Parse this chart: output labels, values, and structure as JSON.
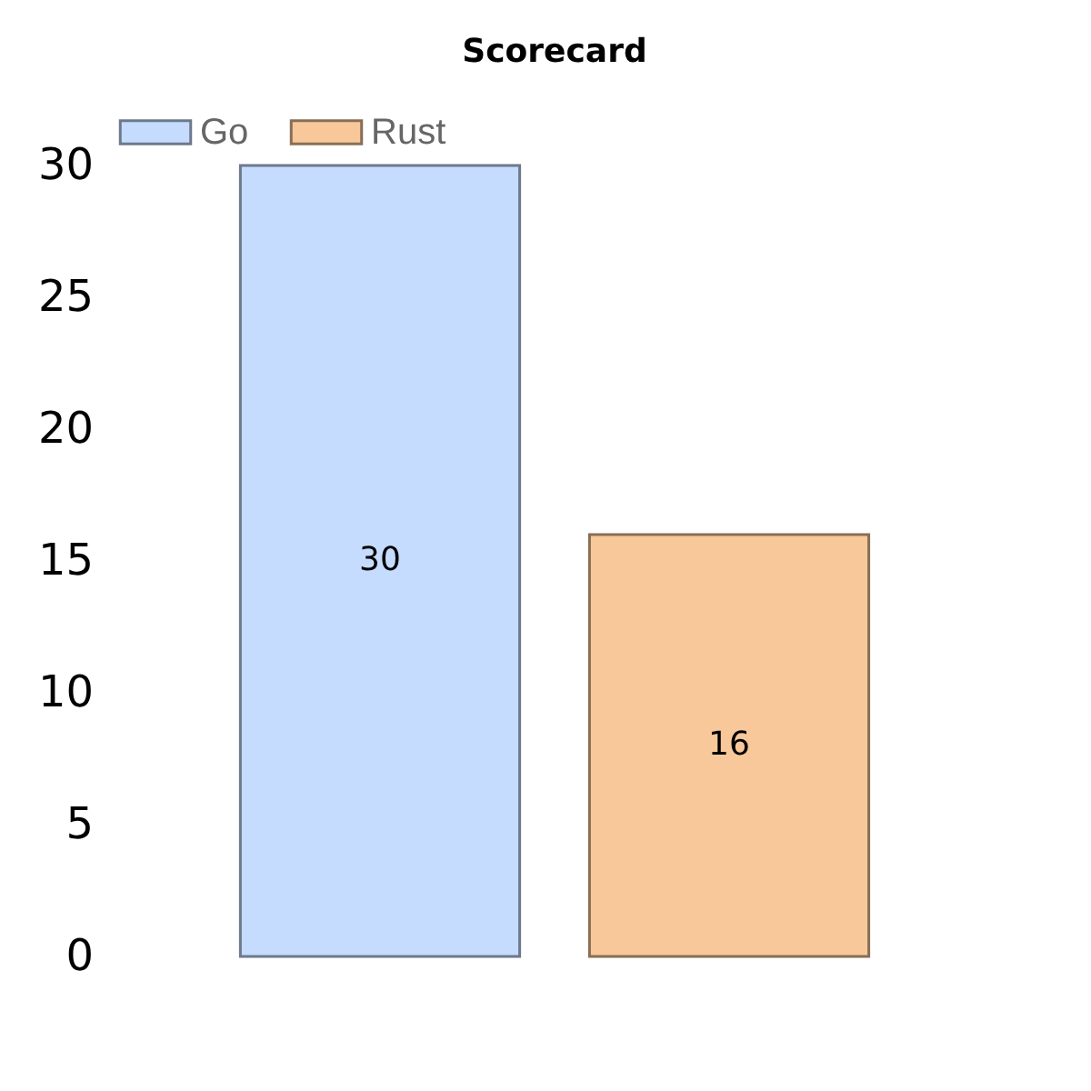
{
  "chart_data": {
    "type": "bar",
    "title": "Scorecard",
    "categories": [
      null
    ],
    "series": [
      {
        "name": "Go",
        "color": "#c6dcfe",
        "values": [
          30
        ]
      },
      {
        "name": "Rust",
        "color": "#f8c89a",
        "values": [
          16
        ]
      }
    ],
    "ylim": [
      0,
      30
    ],
    "yticks": [
      0,
      5,
      10,
      15,
      20,
      25,
      30
    ],
    "grid": false,
    "legend": "top left",
    "data_labels": true
  }
}
